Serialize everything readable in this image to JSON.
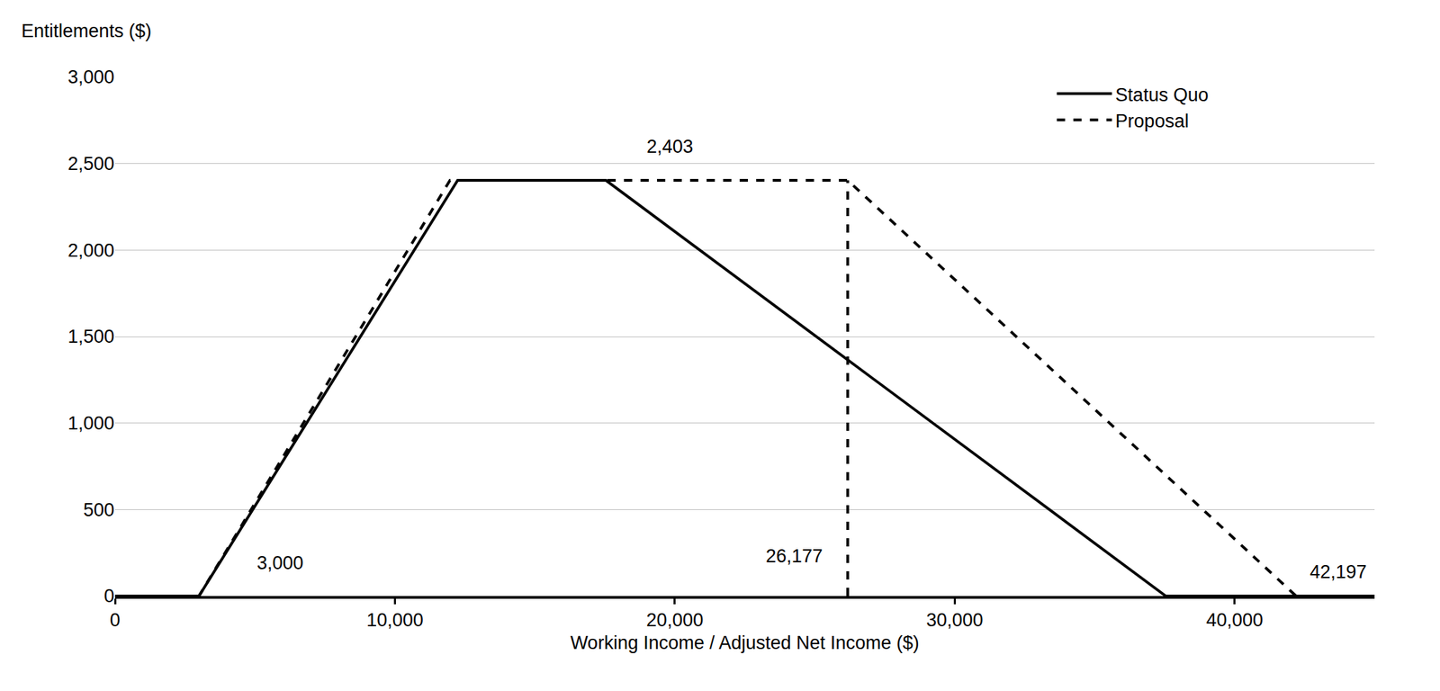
{
  "chart_data": {
    "type": "line",
    "y_label": "Entitlements ($)",
    "x_label": "Working Income / Adjusted Net Income ($)",
    "series": [
      {
        "name": "Status Quo",
        "color": "#000000",
        "line_style": "solid",
        "x": [
          0,
          3000,
          12242,
          17540,
          37540,
          45000
        ],
        "values": [
          0,
          0,
          2403,
          2403,
          0,
          0
        ]
      },
      {
        "name": "Proposal",
        "color": "#000000",
        "line_style": "dash",
        "x": [
          0,
          3000,
          11967,
          26177,
          42197,
          45000
        ],
        "values": [
          0,
          0,
          2403,
          2403,
          0,
          0
        ],
        "drop_line": {
          "x": 26177,
          "y": 2403
        }
      }
    ],
    "annotations": [
      {
        "text": "2,403",
        "x": 19836,
        "y": 2597
      },
      {
        "text": "3,000",
        "x": 5900,
        "y": 190
      },
      {
        "text": "26,177",
        "x": 24260,
        "y": 230
      },
      {
        "text": "42,197",
        "x": 43700,
        "y": 140
      }
    ],
    "xlim": [
      0,
      45000
    ],
    "xticks": [
      0,
      {
        "value": 10000,
        "label": "10,000"
      },
      {
        "value": 20000,
        "label": "20,000"
      },
      {
        "value": 30000,
        "label": "30,000"
      },
      {
        "value": 40000,
        "label": "40,000"
      }
    ],
    "ylim": [
      0,
      3000
    ],
    "yticks": [
      0,
      500,
      {
        "value": 1000,
        "label": "1,000"
      },
      {
        "value": 1500,
        "label": "1,500"
      },
      {
        "value": 2000,
        "label": "2,000"
      },
      {
        "value": 2500,
        "label": "2,500"
      },
      {
        "value": 3000,
        "label": "3,000"
      }
    ],
    "grid": true,
    "legend": "top right"
  }
}
